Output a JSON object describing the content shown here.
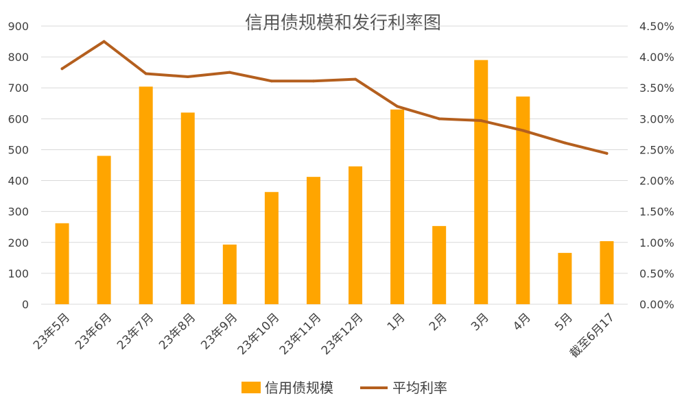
{
  "chart_data": {
    "type": "bar",
    "title": "信用债规模和发行利率图",
    "categories": [
      "23年5月",
      "23年6月",
      "23年7月",
      "23年8月",
      "23年9月",
      "23年10月",
      "23年11月",
      "23年12月",
      "1月",
      "2月",
      "3月",
      "4月",
      "5月",
      "截至6月17"
    ],
    "series": [
      {
        "name": "信用债规模",
        "type": "bar",
        "axis": "left",
        "color": "#FFA500",
        "values": [
          262,
          480,
          704,
          620,
          193,
          363,
          412,
          446,
          630,
          253,
          790,
          672,
          166,
          204
        ]
      },
      {
        "name": "平均利率",
        "type": "line",
        "axis": "right",
        "color": "#B45F1E",
        "values": [
          0.0381,
          0.0425,
          0.0373,
          0.0368,
          0.0375,
          0.0361,
          0.0361,
          0.0364,
          0.032,
          0.03,
          0.0297,
          0.0281,
          0.0261,
          0.0244
        ]
      }
    ],
    "y_left": {
      "min": 0,
      "max": 900,
      "ticks": [
        "0",
        "100",
        "200",
        "300",
        "400",
        "500",
        "600",
        "700",
        "800",
        "900"
      ]
    },
    "y_right": {
      "min": 0,
      "max": 0.045,
      "ticks": [
        "0.00%",
        "0.50%",
        "1.00%",
        "1.50%",
        "2.00%",
        "2.50%",
        "3.00%",
        "3.50%",
        "4.00%",
        "4.50%"
      ]
    },
    "grid": true,
    "legend_position": "bottom"
  }
}
